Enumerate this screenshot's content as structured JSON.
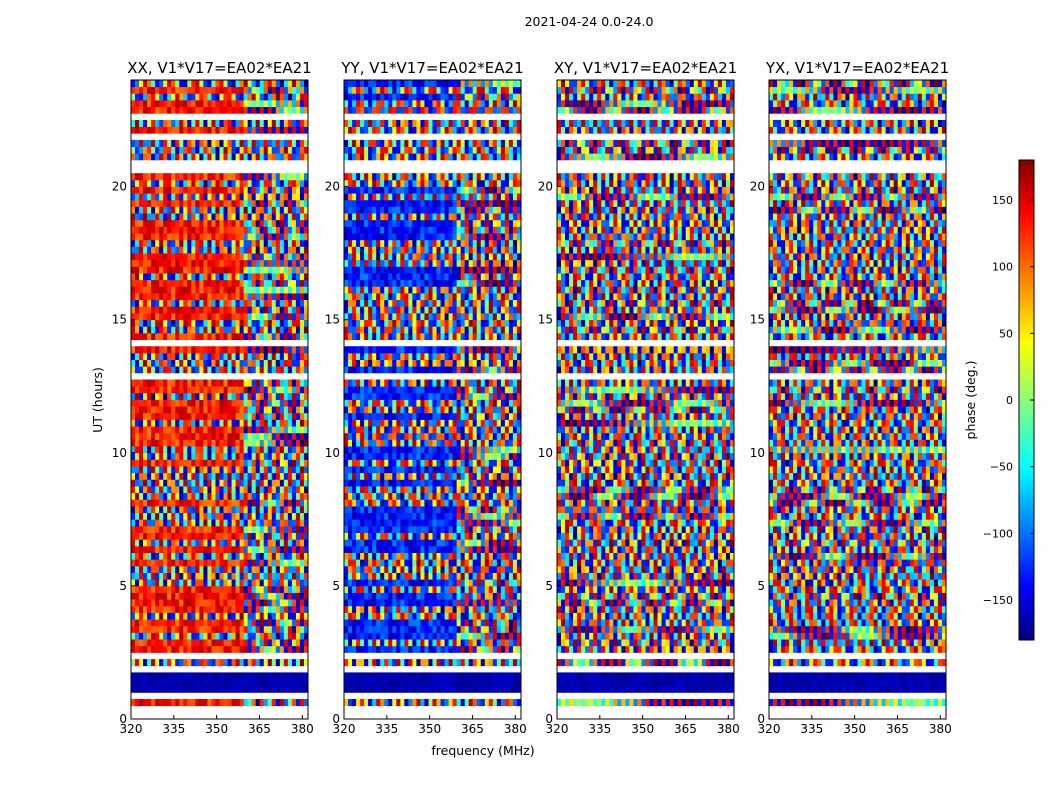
{
  "chart_data": {
    "type": "heatmap",
    "suptitle": "2021-04-24 0.0-24.0",
    "xlabel": "frequency (MHz)",
    "ylabel": "UT (hours)",
    "xlim": [
      320,
      382
    ],
    "ylim": [
      0,
      24
    ],
    "xticks": [
      320,
      335,
      350,
      365,
      380
    ],
    "yticks": [
      0,
      5,
      10,
      15,
      20
    ],
    "panels": [
      {
        "title": "XX, V1*V17=EA02*EA21",
        "pol": "XX"
      },
      {
        "title": "YY, V1*V17=EA02*EA21",
        "pol": "YY"
      },
      {
        "title": "XY, V1*V17=EA02*EA21",
        "pol": "XY"
      },
      {
        "title": "YX, V1*V17=EA02*EA21",
        "pol": "YX"
      }
    ],
    "colorbar": {
      "label": "phase (deg.)",
      "range": [
        -180,
        180
      ],
      "ticks": [
        150,
        100,
        50,
        0,
        -50,
        -100,
        -150
      ],
      "tick_labels": [
        "150",
        "100",
        "50",
        "0",
        "−50",
        "−100",
        "−150"
      ],
      "colormap": "jet"
    }
  },
  "colors": {
    "jet_dark_blue": "#00007f",
    "jet_blue": "#0000ff",
    "jet_cyan": "#00ffff",
    "jet_yellow": "#ffff00",
    "jet_red": "#ff0000",
    "jet_dark_red": "#7f0000"
  }
}
